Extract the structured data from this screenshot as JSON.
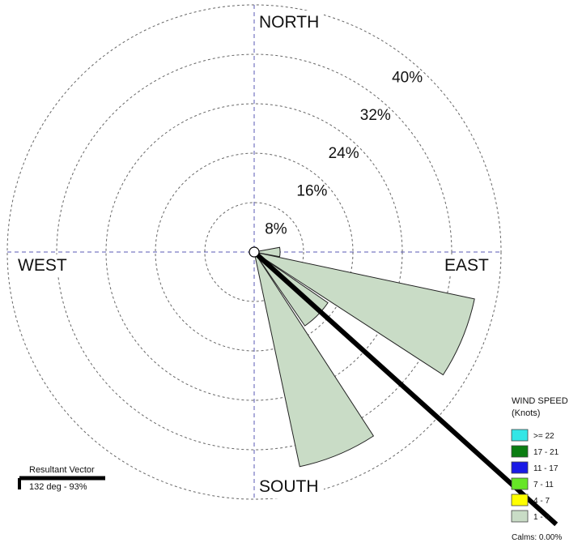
{
  "chart_data": {
    "type": "wind-rose",
    "directions": {
      "north": "NORTH",
      "south": "SOUTH",
      "east": "EAST",
      "west": "WEST"
    },
    "rings": [
      8,
      16,
      24,
      32,
      40
    ],
    "ring_labels": [
      "8%",
      "16%",
      "24%",
      "32%",
      "40%"
    ],
    "speed_bins": [
      {
        "label": ">= 22",
        "color": "#33e6e6"
      },
      {
        "label": "17 - 21",
        "color": "#0b7d12"
      },
      {
        "label": "11 - 17",
        "color": "#1a1ae6"
      },
      {
        "label": "7 - 11",
        "color": "#66e626"
      },
      {
        "label": "4 - 7",
        "color": "#ffff00"
      },
      {
        "label": "1 - 4",
        "color": "#c9dcc6"
      }
    ],
    "petals": [
      {
        "direction_deg": 90,
        "speed_bin": "1 - 4",
        "percent": 4.2
      },
      {
        "direction_deg": 112.5,
        "speed_bin": "1 - 4",
        "percent": 36.5
      },
      {
        "direction_deg": 135,
        "speed_bin": "1 - 4",
        "percent": 14.5
      },
      {
        "direction_deg": 157.5,
        "speed_bin": "1 - 4",
        "percent": 35.5
      }
    ],
    "resultant": {
      "direction_deg": 132,
      "percent": 93
    },
    "legend": {
      "title": "WIND SPEED",
      "subtitle": "(Knots)",
      "calms": "Calms: 0.00%"
    },
    "resultant_label": {
      "title": "Resultant Vector",
      "value": "132 deg - 93%"
    }
  }
}
